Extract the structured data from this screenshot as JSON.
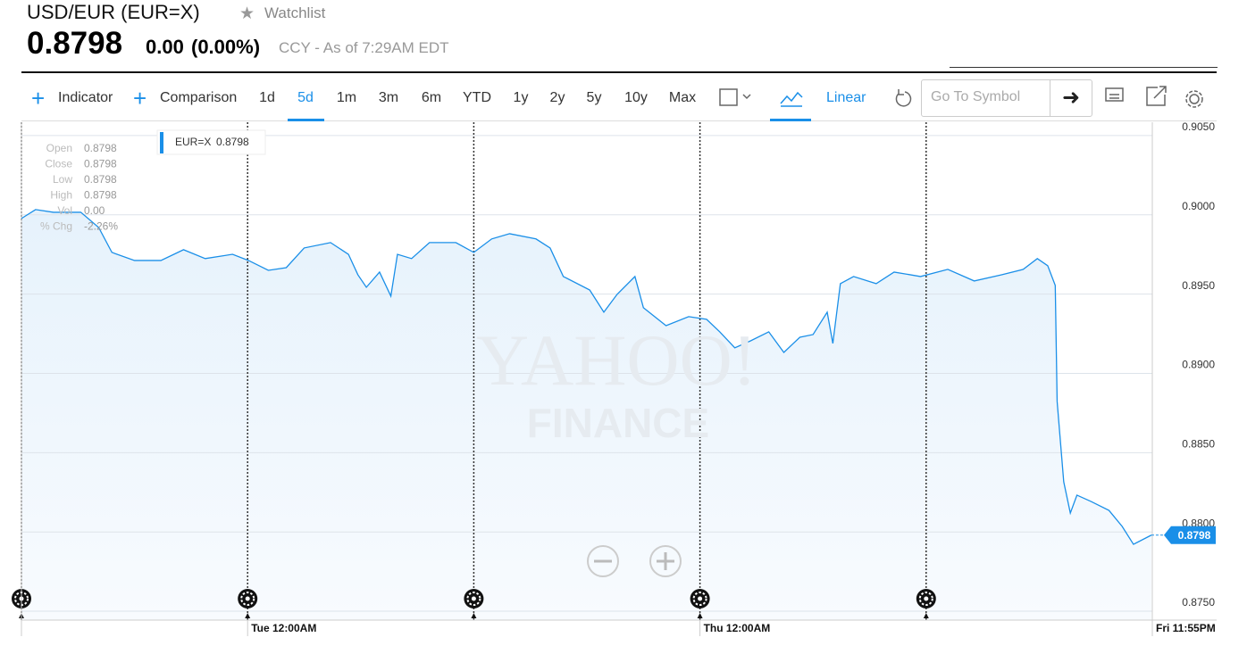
{
  "header": {
    "title": "USD/EUR (EUR=X)",
    "watchlist": "Watchlist",
    "price": "0.8798",
    "change": "0.00",
    "change_pct": "(0.00%)",
    "as_of": "CCY - As of 7:29AM EDT"
  },
  "toolbar": {
    "indicator": "Indicator",
    "comparison": "Comparison",
    "ranges": [
      "1d",
      "5d",
      "1m",
      "3m",
      "6m",
      "YTD",
      "1y",
      "2y",
      "5y",
      "10y",
      "Max"
    ],
    "active_range": "5d",
    "scale": "Linear",
    "symbol_placeholder": "Go To Symbol"
  },
  "chart_data": {
    "type": "line",
    "watermark": [
      "YAHOO!",
      "FINANCE"
    ],
    "legend_value": "0.8798",
    "tooltip": [
      {
        "label": "Open",
        "value": "0.8798"
      },
      {
        "label": "Close",
        "value": "0.8798"
      },
      {
        "label": "Low",
        "value": "0.8798"
      },
      {
        "label": "High",
        "value": "0.8798"
      },
      {
        "label": "Vol",
        "value": "0.00"
      },
      {
        "label": "% Chg",
        "value": "-2.26%"
      }
    ],
    "price_tag": "0.8798",
    "x": [
      0,
      1.5,
      3.4,
      6.3,
      8.2,
      9.6,
      12.0,
      14.8,
      17.2,
      19.5,
      22.4,
      24.1,
      26.2,
      28.1,
      30.0,
      32.8,
      34.7,
      35.7,
      36.6,
      38.0,
      39.2,
      39.9,
      41.4,
      43.3,
      46.1,
      48.0,
      49.9,
      51.8,
      54.6,
      56.1,
      57.5,
      60.3,
      61.8,
      63.2,
      65.1,
      66.0,
      68.4,
      70.8,
      72.7,
      74.1,
      75.7,
      77.4,
      79.3,
      80.9,
      82.6,
      84.0,
      85.5,
      86.1,
      86.9,
      88.3,
      90.7,
      92.6,
      95.4,
      98.3,
      101.1,
      104.0,
      106.3,
      107.8,
      108.9,
      109.7,
      109.9,
      110.6,
      111.3,
      112.0,
      113.5,
      115.4,
      116.8,
      118.0,
      119.9
    ],
    "series": [
      {
        "name": "EUR=X",
        "color": "#1a8fe8",
        "values": [
          0.89977,
          0.90033,
          0.90016,
          0.90016,
          0.8992,
          0.89763,
          0.89712,
          0.89712,
          0.8978,
          0.89724,
          0.89751,
          0.89712,
          0.8965,
          0.89667,
          0.89791,
          0.89825,
          0.89751,
          0.89622,
          0.89543,
          0.89639,
          0.89487,
          0.89751,
          0.89724,
          0.89825,
          0.89825,
          0.89763,
          0.89848,
          0.89881,
          0.89848,
          0.89791,
          0.89611,
          0.89526,
          0.89386,
          0.89498,
          0.89611,
          0.89414,
          0.89301,
          0.89358,
          0.89341,
          0.89262,
          0.89161,
          0.89206,
          0.89262,
          0.89132,
          0.89228,
          0.89245,
          0.89386,
          0.89189,
          0.89566,
          0.89611,
          0.89566,
          0.89639,
          0.89611,
          0.89656,
          0.89583,
          0.89622,
          0.89656,
          0.89724,
          0.89679,
          0.89555,
          0.88823,
          0.88316,
          0.88119,
          0.88232,
          0.88192,
          0.88136,
          0.88035,
          0.87922,
          0.8798
        ]
      }
    ],
    "xlim": [
      0,
      120
    ],
    "xticks": [
      {
        "value": 24,
        "label": "Tue 12:00AM"
      },
      {
        "value": 72,
        "label": "Thu 12:00AM"
      },
      {
        "value": 120,
        "label": "Fri 11:55PM"
      }
    ],
    "day_lines": [
      0,
      24,
      48,
      72,
      96
    ],
    "ylim": [
      0.87444,
      0.90584
    ],
    "yticks": [
      {
        "value": 0.875,
        "label": "0.8750"
      },
      {
        "value": 0.88,
        "label": "0.8800"
      },
      {
        "value": 0.885,
        "label": "0.8850"
      },
      {
        "value": 0.89,
        "label": "0.8900"
      },
      {
        "value": 0.895,
        "label": "0.8950"
      },
      {
        "value": 0.9,
        "label": "0.9000"
      },
      {
        "value": 0.905,
        "label": "0.9050"
      }
    ],
    "grid": true
  }
}
